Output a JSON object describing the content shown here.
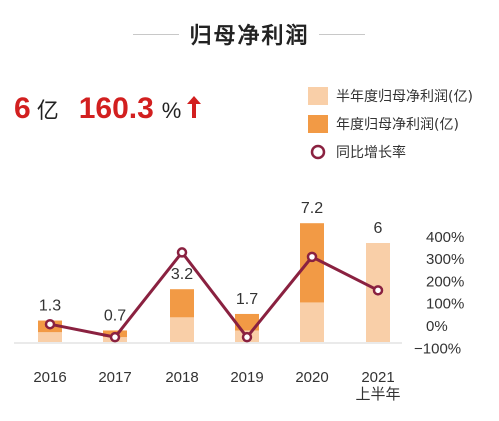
{
  "title": "归母净利润",
  "headline": {
    "value": "6",
    "unit": "亿",
    "growth": "160.3",
    "growth_unit": "%"
  },
  "colors": {
    "half_year": "#f9cfa8",
    "full_year": "#f29a45",
    "line": "#8a2140",
    "headline_red": "#d21f1f",
    "arrow": "#d21f1f"
  },
  "legend": [
    {
      "label": "半年度归母净利润(亿)",
      "kind": "half"
    },
    {
      "label": "年度归母净利润(亿)",
      "kind": "full"
    },
    {
      "label": "同比增长率",
      "kind": "line"
    }
  ],
  "chart_data": {
    "type": "bar+line",
    "categories": [
      "2016",
      "2017",
      "2018",
      "2019",
      "2020",
      "2021"
    ],
    "category_sublabels": [
      "",
      "",
      "",
      "",
      "",
      "上半年"
    ],
    "series": [
      {
        "name": "半年度归母净利润(亿)",
        "type": "bar",
        "values": [
          0.6,
          0.3,
          1.5,
          0.7,
          2.4,
          6.0
        ]
      },
      {
        "name": "年度归母净利润(亿)",
        "type": "bar",
        "values": [
          1.3,
          0.7,
          3.2,
          1.7,
          7.2,
          null
        ]
      },
      {
        "name": "同比增长率",
        "type": "line",
        "axis": "right",
        "values": [
          8,
          -50,
          330,
          -50,
          310,
          160
        ]
      }
    ],
    "data_labels": [
      "1.3",
      "0.7",
      "3.2",
      "1.7",
      "7.2",
      "6"
    ],
    "y_right_ticks": [
      "400%",
      "300%",
      "200%",
      "100%",
      "0%",
      "−100%"
    ],
    "y_right_range": [
      -100,
      400
    ],
    "y_left_range_implied": [
      0,
      8
    ],
    "grid": false,
    "legend_position": "top-right"
  }
}
